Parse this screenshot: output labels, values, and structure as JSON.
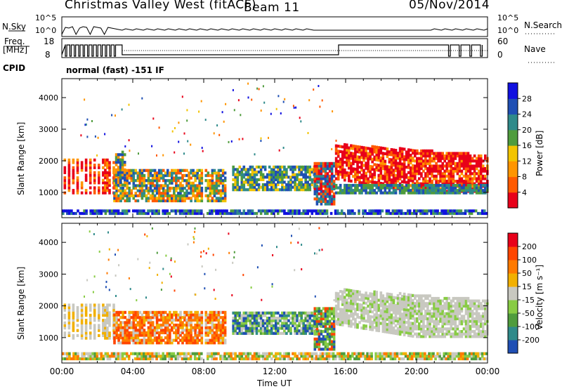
{
  "header": {
    "title": "Christmas Valley West (fitACF)",
    "beam": "Beam 11",
    "date": "05/Nov/2014"
  },
  "strips": {
    "nsky_label": "N.Sky",
    "nsky_ticks": [
      "10^5",
      "10^0"
    ],
    "nsearch_label": "N.Search",
    "freq_label_1": "Freq.",
    "freq_label_2": "[MHz]",
    "freq_ticks": [
      "18",
      "8"
    ],
    "nave_label": "Nave",
    "nave_ticks": [
      "60",
      "0"
    ],
    "cpid_label": "CPID",
    "cpid_value": "normal (fast) -151 IF"
  },
  "chart_data": [
    {
      "type": "heatmap",
      "panel": "power",
      "ylabel": "Slant Range [km]",
      "y_ticks": [
        "4000",
        "3000",
        "2000",
        "1000"
      ],
      "ylim": [
        200,
        4600
      ],
      "xlim": [
        0,
        24
      ],
      "colorbar_label": "Power [dB]",
      "colorbar_ticks": [
        "28",
        "24",
        "20",
        "16",
        "12",
        "8",
        "4"
      ],
      "colorbar_colors": [
        "#e8001a",
        "#ff5a00",
        "#ff9500",
        "#f2c400",
        "#4f9c3d",
        "#2f8a8a",
        "#1f4fb4",
        "#1010e0"
      ]
    },
    {
      "type": "heatmap",
      "panel": "velocity",
      "ylabel": "Slant Range [km]",
      "y_ticks": [
        "4000",
        "3000",
        "2000",
        "1000"
      ],
      "ylim": [
        200,
        4600
      ],
      "xlim": [
        0,
        24
      ],
      "colorbar_label": "Velocity [m s⁻¹]",
      "colorbar_ticks": [
        "200",
        "100",
        "50",
        "15",
        "-15",
        "-50",
        "-100",
        "-200"
      ],
      "colorbar_colors": [
        "#1f4fb4",
        "#2f8a8a",
        "#4f9c3d",
        "#88cc44",
        "#c8c8c0",
        "#f2b000",
        "#ff7a00",
        "#ff4500",
        "#e8001a"
      ]
    }
  ],
  "xaxis": {
    "ticks": [
      "00:00",
      "04:00",
      "08:00",
      "12:00",
      "16:00",
      "20:00",
      "00:00"
    ],
    "label": "Time UT"
  }
}
